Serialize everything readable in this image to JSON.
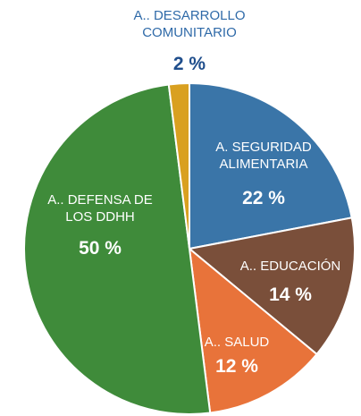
{
  "chart_data": {
    "type": "pie",
    "categories": [
      "A. SEGURIDAD ALIMENTARIA",
      "A.. EDUCACIÓN",
      "A.. SALUD",
      "A.. DEFENSA DE LOS DDHH",
      "A.. DESARROLLO COMUNITARIO"
    ],
    "values": [
      22,
      14,
      12,
      50,
      2
    ],
    "value_labels": [
      "22 %",
      "14 %",
      "12 %",
      "50 %",
      "2 %"
    ],
    "colors": [
      "#3a75a8",
      "#7a4f3a",
      "#e8733a",
      "#3f8b3a",
      "#d9a020"
    ]
  }
}
